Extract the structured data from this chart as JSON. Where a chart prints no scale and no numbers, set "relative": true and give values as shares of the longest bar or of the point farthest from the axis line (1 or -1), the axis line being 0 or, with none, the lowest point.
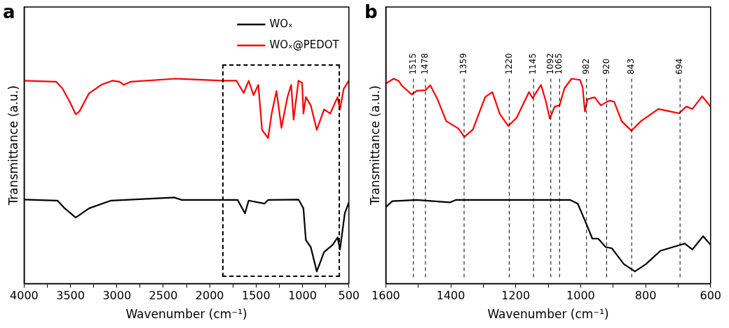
{
  "chart_data": [
    {
      "type": "line",
      "title": "a",
      "xlabel": "Wavenumber (cm⁻¹)",
      "ylabel": "Transmittance (a.u.)",
      "relative": true,
      "legend": "top right",
      "grid": false,
      "marker": "none",
      "line_style": "solid",
      "xlim": [
        4000,
        500
      ],
      "xticks": [
        4000,
        {
          "value": 3750,
          "label": null
        },
        3500,
        {
          "value": 3250,
          "label": null
        },
        3000,
        {
          "value": 2750,
          "label": null
        },
        2500,
        {
          "value": 2250,
          "label": null
        },
        2000,
        {
          "value": 1750,
          "label": null
        },
        1500,
        {
          "value": 1250,
          "label": null
        },
        1000,
        {
          "value": 750,
          "label": null
        },
        500
      ],
      "series": [
        {
          "name": "WOₓ",
          "color": "#000000",
          "x": [
            4000,
            3641,
            3562,
            3444,
            3300,
            3063,
            2381,
            2302,
            1699,
            1620,
            1580,
            1410,
            1371,
            1043,
            990,
            964,
            911,
            846,
            767,
            675,
            622,
            596,
            544,
            500
          ],
          "values": [
            0.41,
            0.405,
            0.367,
            0.322,
            0.367,
            0.405,
            0.42,
            0.408,
            0.408,
            0.343,
            0.405,
            0.39,
            0.408,
            0.41,
            0.367,
            0.213,
            0.178,
            0.059,
            0.154,
            0.189,
            0.225,
            0.166,
            0.343,
            0.396
          ]
        },
        {
          "name": "WOₓ@PEDOT",
          "color": "#ff0000",
          "x": [
            4000,
            3654,
            3588,
            3509,
            3444,
            3404,
            3300,
            3168,
            3050,
            2971,
            2927,
            2853,
            2368,
            1856,
            1712,
            1633,
            1580,
            1528,
            1476,
            1436,
            1371,
            1332,
            1280,
            1227,
            1162,
            1122,
            1096,
            1043,
            1004,
            990,
            964,
            911,
            846,
            767,
            701,
            622,
            596,
            556,
            500
          ],
          "values": [
            0.99,
            0.985,
            0.953,
            0.888,
            0.826,
            0.84,
            0.929,
            0.97,
            0.99,
            0.985,
            0.97,
            0.985,
            1.0,
            0.99,
            0.99,
            0.93,
            0.99,
            0.92,
            0.97,
            0.75,
            0.71,
            0.83,
            0.94,
            0.76,
            0.91,
            0.97,
            0.8,
            0.99,
            0.98,
            0.83,
            0.91,
            0.87,
            0.75,
            0.85,
            0.83,
            0.91,
            0.85,
            0.95,
            0.99
          ]
        }
      ]
    },
    {
      "type": "line",
      "title": "b",
      "xlabel": "Wavenumber (cm⁻¹)",
      "ylabel": "Transmittance (a.u.)",
      "relative": true,
      "legend": false,
      "grid": false,
      "marker": "none",
      "line_style": "solid",
      "xlim": [
        1600,
        600
      ],
      "xticks": [
        1600,
        {
          "value": 1500,
          "label": null
        },
        1400,
        {
          "value": 1300,
          "label": null
        },
        1200,
        {
          "value": 1100,
          "label": null
        },
        1000,
        {
          "value": 900,
          "label": null
        },
        800,
        {
          "value": 700,
          "label": null
        },
        600
      ],
      "ref_lines": [
        {
          "axis": "x",
          "value": 1515,
          "label": "1515",
          "line_style": "dashed",
          "color": "#000000"
        },
        {
          "axis": "x",
          "value": 1478,
          "label": "1478",
          "line_style": "dashed",
          "color": "#000000"
        },
        {
          "axis": "x",
          "value": 1359,
          "label": "1359",
          "line_style": "dashed",
          "color": "#000000"
        },
        {
          "axis": "x",
          "value": 1220,
          "label": "1220",
          "line_style": "dashed",
          "color": "#000000"
        },
        {
          "axis": "x",
          "value": 1145,
          "label": "1145",
          "line_style": "dashed",
          "color": "#000000"
        },
        {
          "axis": "x",
          "value": 1092,
          "label": "1092",
          "line_style": "dashed",
          "color": "#000000"
        },
        {
          "axis": "x",
          "value": 1065,
          "label": "1065",
          "line_style": "dashed",
          "color": "#000000"
        },
        {
          "axis": "x",
          "value": 982,
          "label": "982",
          "line_style": "dashed",
          "color": "#000000"
        },
        {
          "axis": "x",
          "value": 920,
          "label": "920",
          "line_style": "dashed",
          "color": "#000000"
        },
        {
          "axis": "x",
          "value": 843,
          "label": "843",
          "line_style": "dashed",
          "color": "#000000"
        },
        {
          "axis": "x",
          "value": 694,
          "label": "694",
          "line_style": "dashed",
          "color": "#000000"
        }
      ],
      "series": [
        {
          "name": null,
          "color": "#000000",
          "x": [
            1600,
            1580,
            1505,
            1403,
            1385,
            1032,
            1009,
            987,
            964,
            946,
            923,
            904,
            867,
            833,
            799,
            754,
            679,
            656,
            623,
            600
          ],
          "values": [
            0.373,
            0.402,
            0.408,
            0.396,
            0.408,
            0.408,
            0.39,
            0.308,
            0.219,
            0.219,
            0.178,
            0.172,
            0.095,
            0.059,
            0.095,
            0.16,
            0.195,
            0.166,
            0.231,
            0.189
          ]
        },
        {
          "name": null,
          "color": "#ff0000",
          "x": [
            1600,
            1576,
            1561,
            1550,
            1520,
            1505,
            1478,
            1463,
            1441,
            1414,
            1377,
            1358,
            1332,
            1294,
            1272,
            1249,
            1223,
            1197,
            1159,
            1148,
            1122,
            1107,
            1095,
            1080,
            1065,
            1050,
            1028,
            1002,
            994,
            987,
            979,
            957,
            938,
            912,
            897,
            874,
            844,
            814,
            761,
            724,
            697,
            675,
            656,
            626,
            600
          ],
          "values": [
            0.976,
            1.0,
            0.99,
            0.965,
            0.923,
            0.941,
            0.944,
            0.968,
            0.9,
            0.793,
            0.757,
            0.716,
            0.751,
            0.911,
            0.935,
            0.828,
            0.769,
            0.81,
            0.935,
            0.905,
            0.97,
            0.888,
            0.805,
            0.864,
            0.87,
            0.953,
            1.0,
            0.994,
            0.959,
            0.84,
            0.9,
            0.909,
            0.87,
            0.893,
            0.888,
            0.793,
            0.746,
            0.793,
            0.852,
            0.84,
            0.831,
            0.864,
            0.852,
            0.914,
            0.864
          ]
        }
      ]
    }
  ]
}
